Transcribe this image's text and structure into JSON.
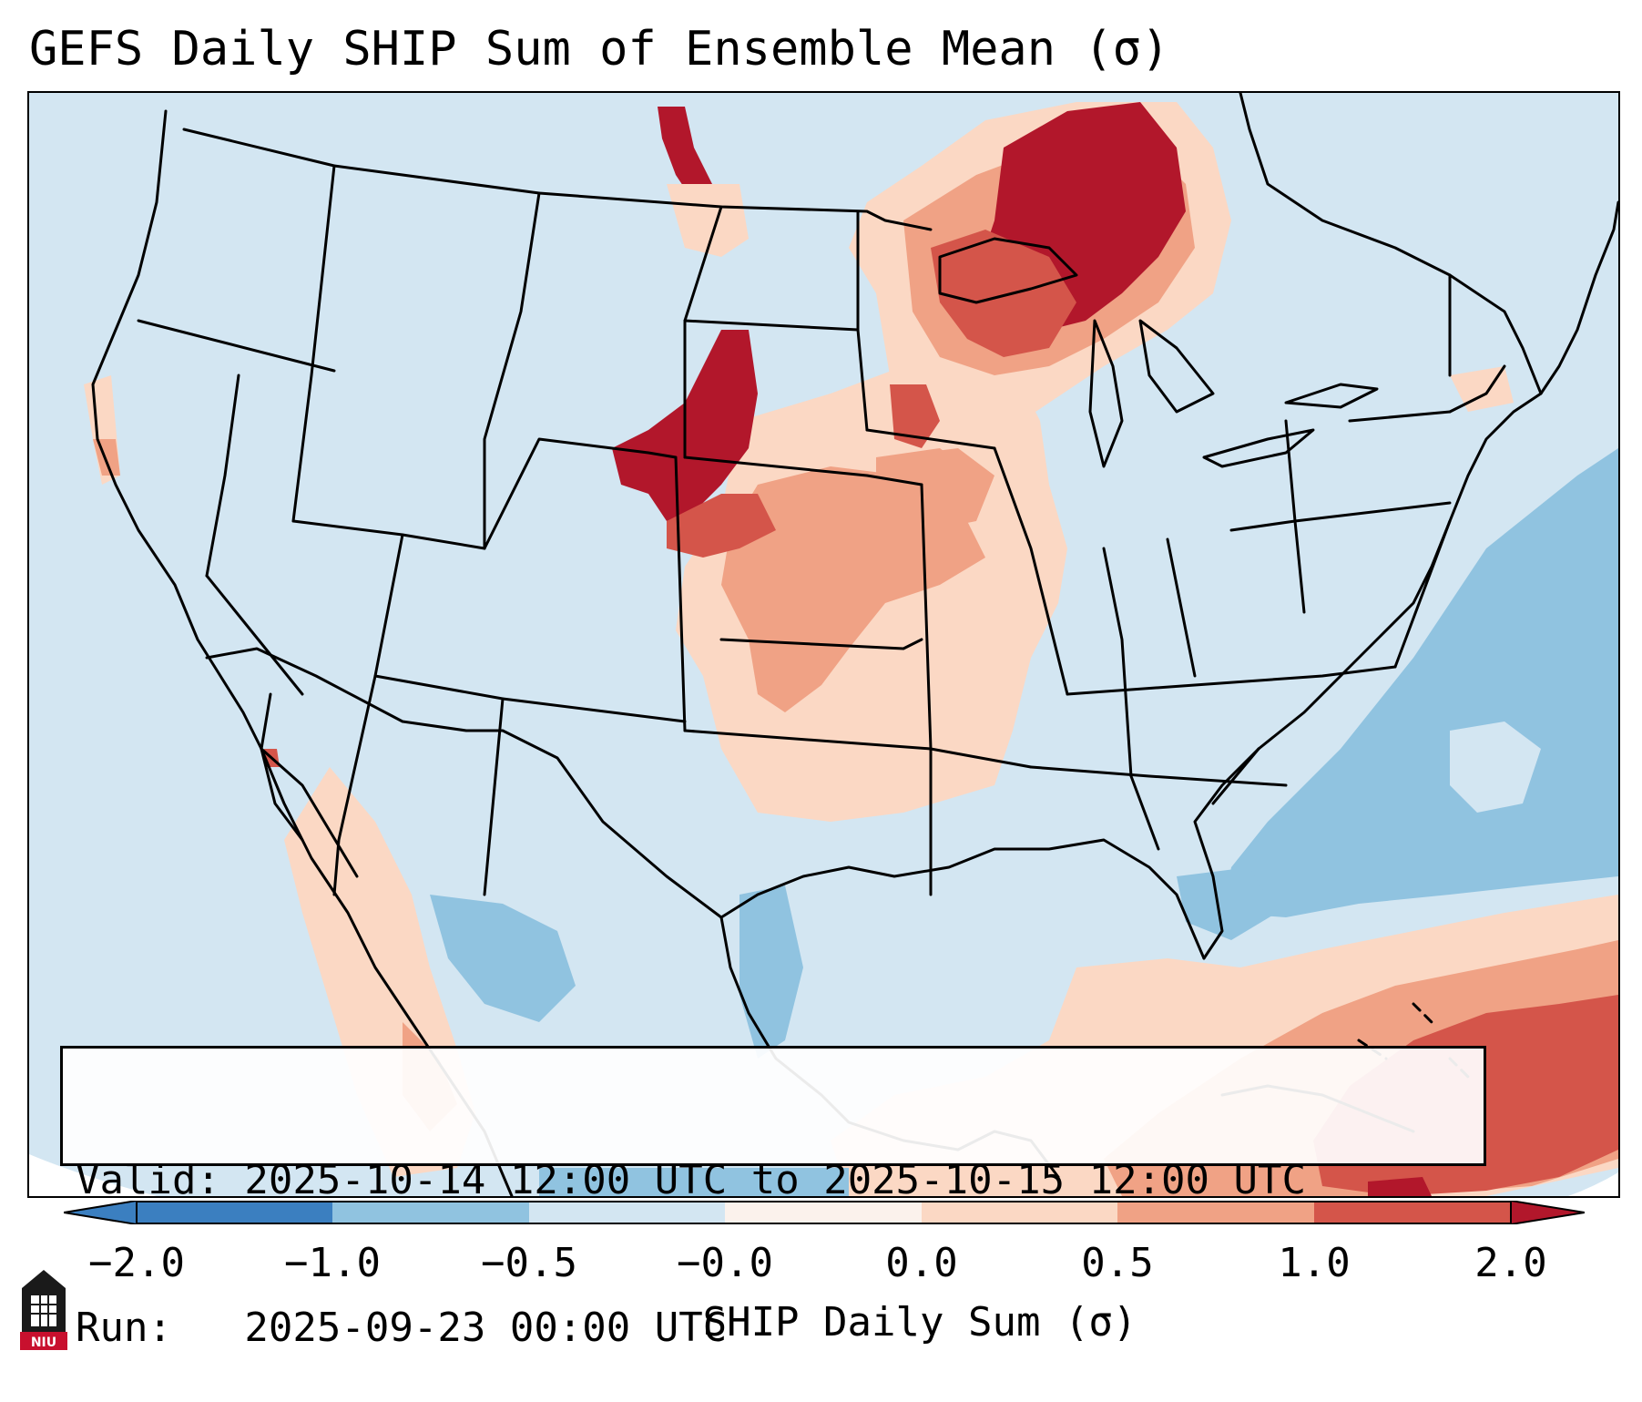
{
  "title": "GEFS Daily SHIP Sum of Ensemble Mean (σ)",
  "info": {
    "valid_line": "Valid: 2025-10-14 12:00 UTC to 2025-10-15 12:00 UTC",
    "run_line": "Run:   2025-09-23 00:00 UTC"
  },
  "colorbar": {
    "label": "SHIP Daily Sum (σ)",
    "ticks": [
      "−2.0",
      "−1.0",
      "−0.5",
      "−0.0",
      "0.0",
      "0.5",
      "1.0",
      "2.0"
    ],
    "colors": [
      "#3b7fc0",
      "#90c3e0",
      "#d3e6f2",
      "#fbd8c4",
      "#f0a285",
      "#d4554a",
      "#b2172b"
    ],
    "extend": "both"
  },
  "map": {
    "projection": "Lambert conic, CONUS",
    "background_color": "#d3e6f2",
    "levels": {
      "neg_strong": "#3b7fc0",
      "neg_mid": "#90c3e0",
      "neg_weak": "#d3e6f2",
      "pos_weak": "#fbd8c4",
      "pos_mid": "#f0a285",
      "pos_strong": "#d4554a",
      "pos_max": "#b2172b"
    }
  },
  "logo": {
    "text": "NIU",
    "icon": "niu-logo-icon"
  }
}
